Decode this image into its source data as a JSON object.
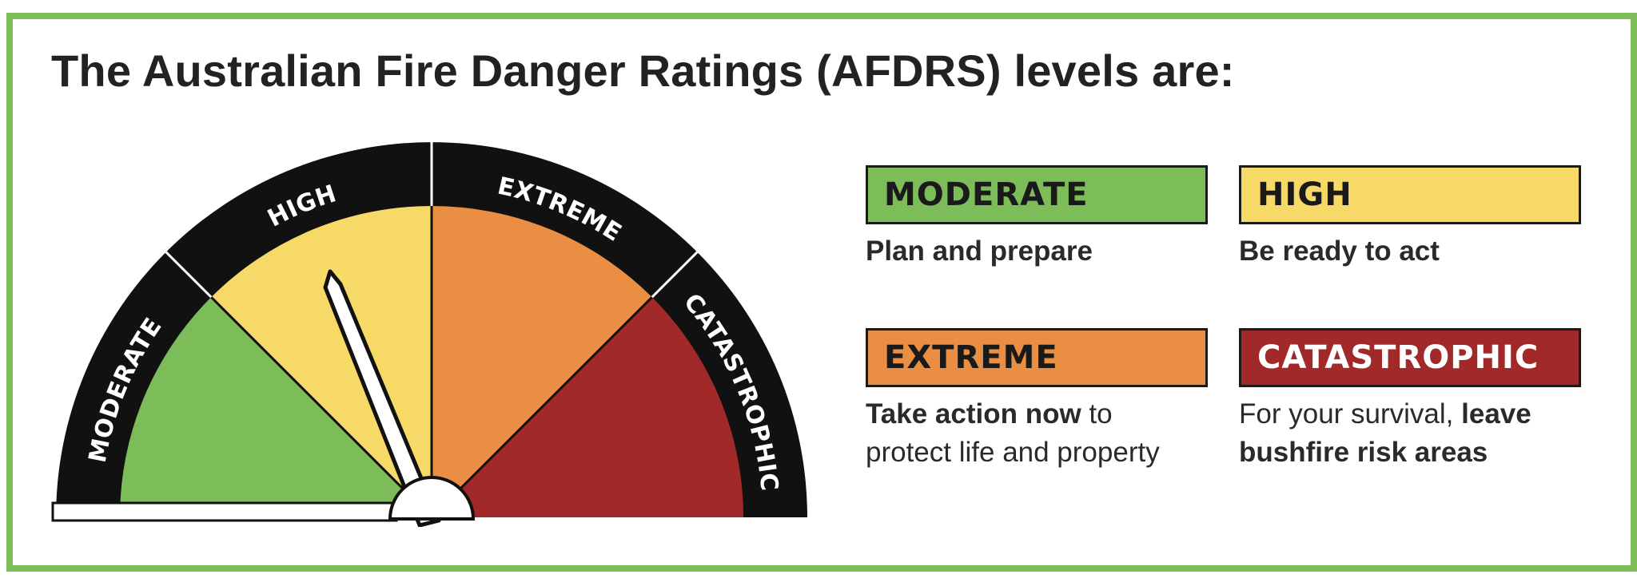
{
  "title": "The Australian Fire Danger Ratings (AFDRS) levels are:",
  "gauge": {
    "levels": [
      {
        "label": "MODERATE",
        "color": "#7cbd59"
      },
      {
        "label": "HIGH",
        "color": "#f6d966"
      },
      {
        "label": "EXTREME",
        "color": "#e98e43"
      },
      {
        "label": "CATASTROPHIC",
        "color": "#a2292a"
      }
    ],
    "band_color": "#111111",
    "needle_level": "HIGH"
  },
  "ratings": [
    {
      "key": "moderate",
      "label": "MODERATE",
      "color": "#7cbd59",
      "text_color": "#1a1a1a",
      "desc": [
        {
          "text": "Plan and prepare",
          "bold": true
        }
      ]
    },
    {
      "key": "high",
      "label": "HIGH",
      "color": "#f6d966",
      "text_color": "#1a1a1a",
      "desc": [
        {
          "text": "Be ready to act",
          "bold": true
        }
      ]
    },
    {
      "key": "extreme",
      "label": "EXTREME",
      "color": "#e98e43",
      "text_color": "#1a1a1a",
      "desc": [
        {
          "text": "Take action now",
          "bold": true
        },
        {
          "text": " to protect life and property",
          "bold": false
        }
      ]
    },
    {
      "key": "catastrophic",
      "label": "CATASTROPHIC",
      "color": "#a2292a",
      "text_color": "#ffffff",
      "desc": [
        {
          "text": "For your survival, ",
          "bold": false
        },
        {
          "text": "leave bushfire risk areas",
          "bold": true
        }
      ]
    }
  ]
}
